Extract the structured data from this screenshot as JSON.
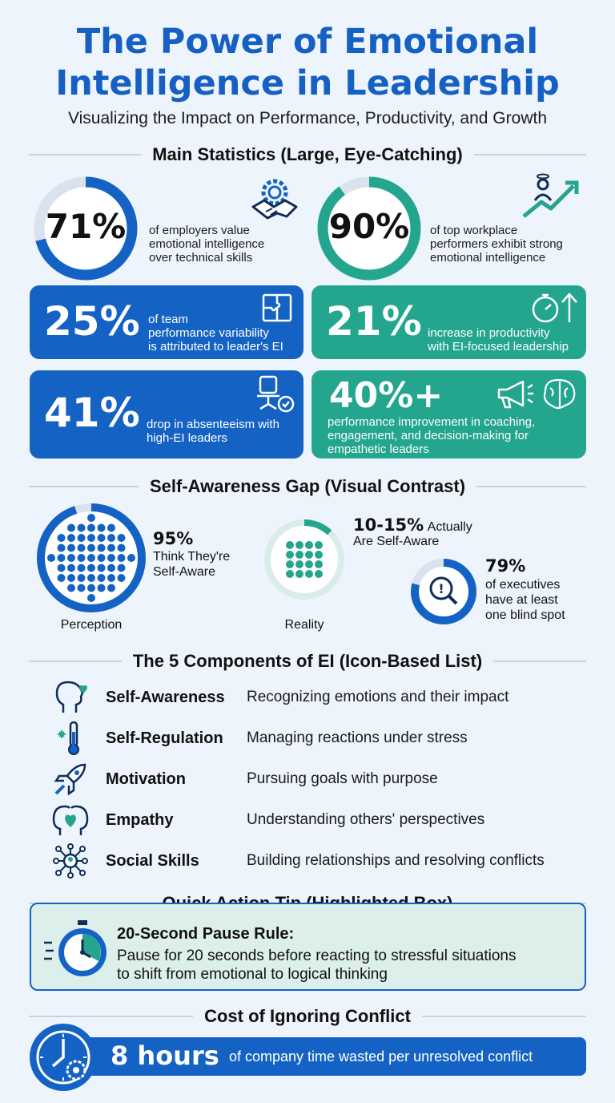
{
  "title_line1": "The Power of Emotional",
  "title_line2": "Intelligence in Leadership",
  "subtitle": "Visualizing the Impact on Performance, Productivity, and Growth",
  "sections": {
    "main_stats": "Main Statistics (Large, Eye-Catching)",
    "gap": "Self-Awareness Gap (Visual Contrast)",
    "components": "The 5 Components of EI (Icon-Based List)",
    "tip": "Quick Action Tip (Highlighted Box)",
    "cost": "Cost of Ignoring Conflict"
  },
  "stats": {
    "employers": {
      "value": "71%",
      "fraction": 0.71,
      "desc1": "of employers value",
      "desc2": "emotional intelligence",
      "desc3": "over technical skills",
      "icon": "handshake-gear-icon"
    },
    "performers": {
      "value": "90%",
      "fraction": 0.9,
      "desc1": "of top workplace",
      "desc2": "performers exhibit strong",
      "desc3": "emotional intelligence",
      "icon": "growth-arrow-icon"
    },
    "team": {
      "value": "25%",
      "desc1": "of team",
      "desc2": "performance variability",
      "desc3": "is attributed to leader's EI",
      "icon": "puzzle-icon"
    },
    "productivity": {
      "value": "21%",
      "desc1": "increase in productivity",
      "desc2": "with EI-focused leadership",
      "icon": "stopwatch-up-icon"
    },
    "absenteeism": {
      "value": "41%",
      "desc1": "drop in absenteeism with",
      "desc2": "high-EI leaders",
      "icon": "office-chair-icon"
    },
    "improvement": {
      "value": "40%+",
      "desc1": "performance improvement in coaching,",
      "desc2": "engagement, and decision-making for",
      "desc3": "empathetic leaders",
      "icon": "megaphone-brain-icon"
    }
  },
  "gap": {
    "perception": {
      "value": "95%",
      "fraction": 0.95,
      "line1": "Think They're",
      "line2": "Self-Aware",
      "label": "Perception"
    },
    "reality": {
      "value": "10-15%",
      "fraction": 0.12,
      "line1": "Actually",
      "line2": "Are Self-Aware",
      "label": "Reality"
    },
    "executives": {
      "value": "79%",
      "fraction": 0.79,
      "line1": "of executives",
      "line2": "have at least",
      "line3": "one blind spot"
    }
  },
  "components": [
    {
      "name": "Self-Awareness",
      "desc": "Recognizing emotions and their impact",
      "icon": "head-heart-icon"
    },
    {
      "name": "Self-Regulation",
      "desc": "Managing reactions under stress",
      "icon": "thermometer-icon"
    },
    {
      "name": "Motivation",
      "desc": "Pursuing goals with purpose",
      "icon": "rocket-icon"
    },
    {
      "name": "Empathy",
      "desc": "Understanding others' perspectives",
      "icon": "two-heads-heart-icon"
    },
    {
      "name": "Social Skills",
      "desc": "Building relationships and resolving conflicts",
      "icon": "network-icon"
    }
  ],
  "tip": {
    "heading": "20-Second Pause Rule:",
    "line1": "Pause for 20 seconds before reacting to stressful situations",
    "line2": "to shift from emotional to logical thinking",
    "icon": "stopwatch-icon"
  },
  "cost": {
    "value": "8 hours",
    "desc": "of company time wasted per unresolved conflict",
    "icon": "clock-gear-icon"
  },
  "colors": {
    "blue": "#1463c4",
    "teal": "#23a58e",
    "title": "#1560c2"
  }
}
